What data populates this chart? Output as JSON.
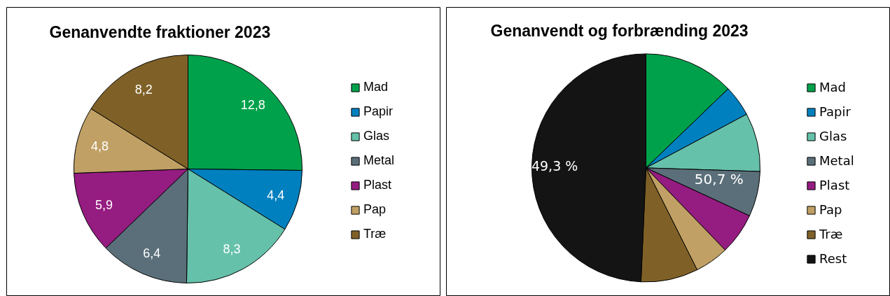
{
  "chart_data": [
    {
      "type": "pie",
      "title": "Genanvendte fraktioner 2023",
      "categories": [
        "Mad",
        "Papir",
        "Glas",
        "Metal",
        "Plast",
        "Pap",
        "Træ"
      ],
      "values": [
        12.8,
        4.4,
        8.3,
        6.4,
        5.9,
        4.8,
        8.2
      ],
      "colors": [
        "#00a14b",
        "#0080bf",
        "#66c1aa",
        "#5a6f79",
        "#951c80",
        "#c0a064",
        "#7f6128"
      ],
      "value_labels": [
        "12,8",
        "4,4",
        "8,3",
        "6,4",
        "5,9",
        "4,8",
        "8,2"
      ],
      "legend": "right"
    },
    {
      "type": "pie",
      "title": "Genanvendt og forbrænding 2023",
      "categories": [
        "Mad",
        "Papir",
        "Glas",
        "Metal",
        "Plast",
        "Pap",
        "Træ",
        "Rest"
      ],
      "values": [
        12.8,
        4.4,
        8.3,
        6.4,
        5.9,
        4.8,
        8.1,
        49.3
      ],
      "colors": [
        "#00a14b",
        "#0080bf",
        "#66c1aa",
        "#5a6f79",
        "#951c80",
        "#c0a064",
        "#7f6128",
        "#141414"
      ],
      "value_labels": [
        null,
        null,
        null,
        null,
        null,
        null,
        null,
        "49,3 %"
      ],
      "annotations": [
        "50,7 %"
      ],
      "legend": "right"
    }
  ]
}
